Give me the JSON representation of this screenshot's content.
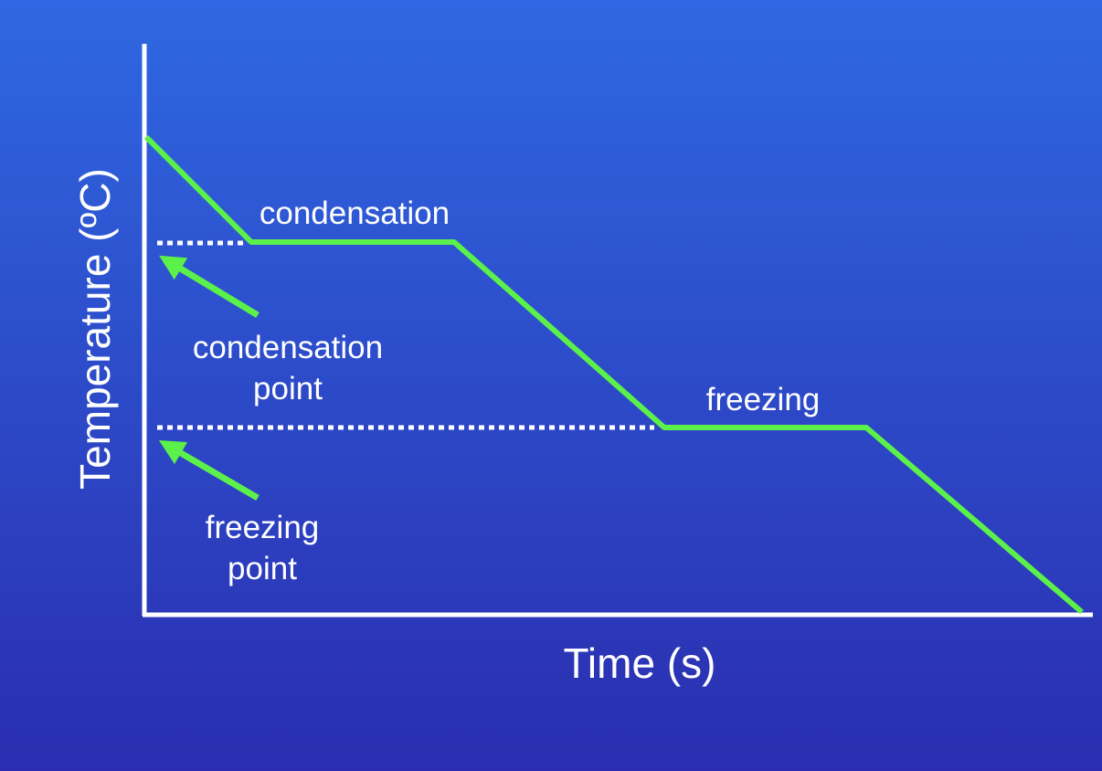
{
  "axes": {
    "y_label": "Temperature (ºC)",
    "x_label": "Time (s)"
  },
  "phase_labels": [
    "condensation",
    "freezing"
  ],
  "annotations": [
    {
      "lines": [
        "condensation",
        "point"
      ]
    },
    {
      "lines": [
        "freezing",
        "point"
      ]
    }
  ]
}
